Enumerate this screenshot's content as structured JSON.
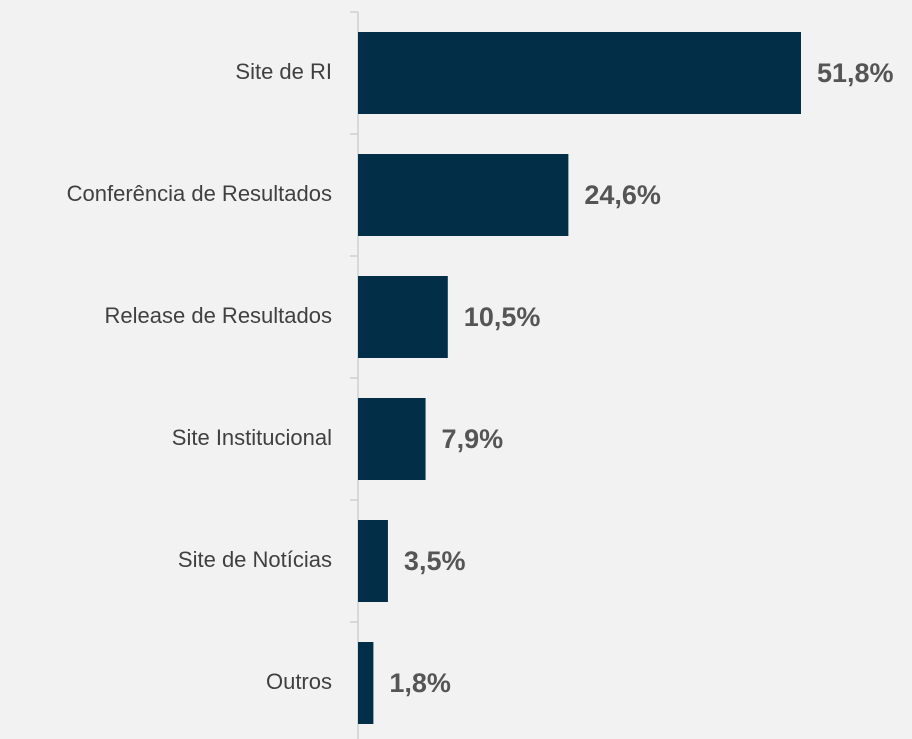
{
  "chart_data": {
    "type": "bar",
    "orientation": "horizontal",
    "categories": [
      "Site de RI",
      "Conferência de Resultados",
      "Release de Resultados",
      "Site Institucional",
      "Site de Notícias",
      "Outros"
    ],
    "values": [
      51.8,
      24.6,
      10.5,
      7.9,
      3.5,
      1.8
    ],
    "value_labels": [
      "51,8%",
      "24,6%",
      "10,5%",
      "7,9%",
      "3,5%",
      "1,8%"
    ],
    "color": "#022f47"
  }
}
